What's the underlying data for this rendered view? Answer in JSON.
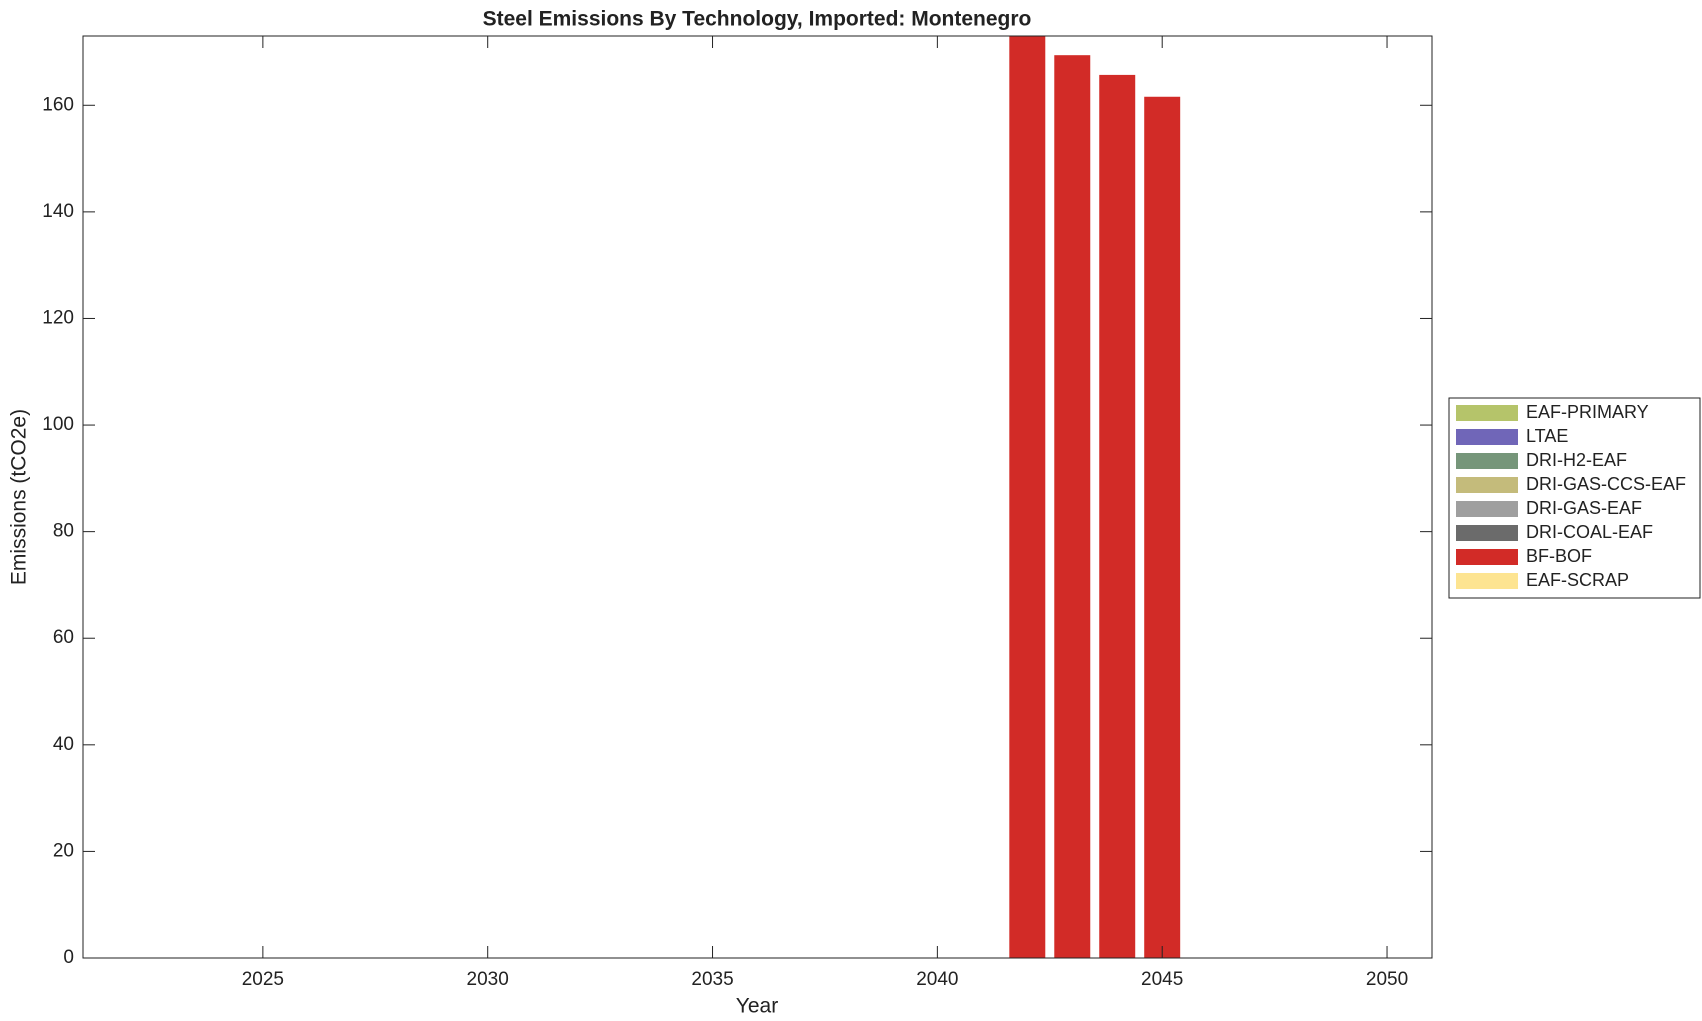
{
  "chart_data": {
    "type": "stacked-bar",
    "title": "Steel Emissions By Technology, Imported: Montenegro",
    "xlabel": "Year",
    "ylabel": "Emissions (tCO2e)",
    "x": [
      2042,
      2043,
      2044,
      2045
    ],
    "series": [
      {
        "name": "EAF-PRIMARY",
        "color": "#b5c46a",
        "values": [
          0,
          0,
          0,
          0
        ]
      },
      {
        "name": "LTAE",
        "color": "#7066b8",
        "values": [
          0,
          0,
          0,
          0
        ]
      },
      {
        "name": "DRI-H2-EAF",
        "color": "#76967a",
        "values": [
          0,
          0,
          0,
          0
        ]
      },
      {
        "name": "DRI-GAS-CCS-EAF",
        "color": "#c4bb7b",
        "values": [
          0,
          0,
          0,
          0
        ]
      },
      {
        "name": "DRI-GAS-EAF",
        "color": "#9f9f9f",
        "values": [
          0,
          0,
          0,
          0
        ]
      },
      {
        "name": "DRI-COAL-EAF",
        "color": "#6b6b6b",
        "values": [
          0,
          0,
          0,
          0
        ]
      },
      {
        "name": "BF-BOF",
        "color": "#d22b27",
        "values": [
          173.5,
          169.4,
          165.7,
          161.6
        ]
      },
      {
        "name": "EAF-SCRAP",
        "color": "#fde491",
        "values": [
          0,
          0,
          0,
          0
        ]
      }
    ],
    "xlim": [
      2021,
      2051
    ],
    "xticks": [
      2025,
      2030,
      2035,
      2040,
      2045,
      2050
    ],
    "ylim": [
      0,
      173
    ],
    "yticks": [
      0,
      20,
      40,
      60,
      80,
      100,
      120,
      140,
      160
    ],
    "grid": false,
    "legend": "outside-right"
  }
}
